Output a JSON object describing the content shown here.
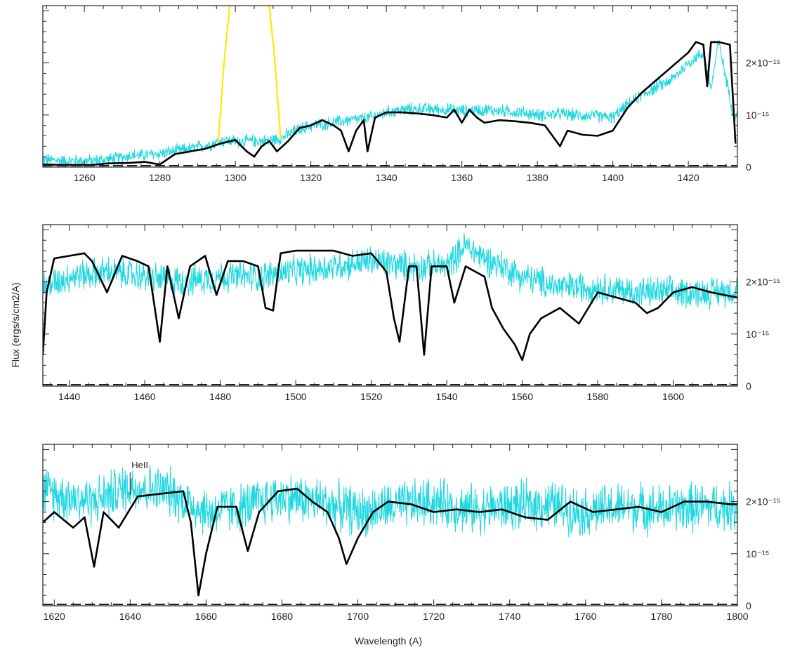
{
  "figure": {
    "ylabel": "Flux (ergs/s/cm2/A)",
    "xlabel": "Wavelength (A)"
  },
  "chart_data": [
    {
      "type": "line",
      "xlim": [
        1249,
        1433
      ],
      "ylim": [
        0,
        3.1e-15
      ],
      "xticks": [
        1260,
        1280,
        1300,
        1320,
        1340,
        1360,
        1380,
        1400,
        1420
      ],
      "yticks": [
        {
          "value": 0,
          "label": "0"
        },
        {
          "value": 1e-15,
          "label": "10⁻¹⁵"
        },
        {
          "value": 2e-15,
          "label": "2×10⁻¹⁵"
        }
      ],
      "series": [
        {
          "color": "#22d8e0",
          "role": "observed",
          "noise": 0.09,
          "x": [
            1249,
            1255,
            1262,
            1268,
            1272,
            1278,
            1282,
            1286,
            1290,
            1294,
            1296,
            1300,
            1304,
            1308,
            1312,
            1316,
            1320,
            1326,
            1330,
            1336,
            1340,
            1344,
            1350,
            1356,
            1360,
            1366,
            1370,
            1376,
            1380,
            1386,
            1390,
            1396,
            1400,
            1404,
            1408,
            1412,
            1416,
            1420,
            1424,
            1426,
            1428,
            1432
          ],
          "y": [
            0.14,
            0.12,
            0.12,
            0.16,
            0.22,
            0.24,
            0.28,
            0.33,
            0.38,
            0.45,
            0.5,
            0.5,
            0.5,
            0.5,
            0.55,
            0.7,
            0.8,
            0.85,
            0.9,
            0.95,
            1.05,
            1.1,
            1.12,
            1.1,
            1.08,
            1.1,
            1.08,
            1.05,
            1.0,
            1.02,
            1.0,
            0.98,
            0.95,
            1.2,
            1.4,
            1.55,
            1.7,
            2.0,
            2.2,
            1.5,
            2.4,
            1.0
          ]
        },
        {
          "color": "#ffea00",
          "role": "geocoronal",
          "noise": 0,
          "x": [
            1295.5,
            1297,
            1298.5,
            1300,
            1303,
            1306,
            1309,
            1310.5,
            1312
          ],
          "y": [
            0.48,
            2.0,
            3.1,
            3.2,
            3.2,
            3.2,
            3.1,
            2.0,
            0.55
          ]
        },
        {
          "color": "#000000",
          "role": "model",
          "noise": 0,
          "x": [
            1249,
            1255,
            1262,
            1266,
            1272,
            1276,
            1280,
            1284,
            1288,
            1292,
            1296,
            1300,
            1303,
            1305,
            1307,
            1309,
            1311,
            1314,
            1317,
            1320,
            1323,
            1326,
            1328,
            1330,
            1332,
            1334,
            1335,
            1337,
            1340,
            1344,
            1348,
            1352,
            1356,
            1358,
            1360,
            1362,
            1364,
            1366,
            1370,
            1374,
            1378,
            1382,
            1386,
            1388,
            1392,
            1396,
            1400,
            1404,
            1408,
            1412,
            1416,
            1420,
            1422,
            1424,
            1425,
            1426,
            1428,
            1431,
            1432.5
          ],
          "y": [
            0.05,
            0.04,
            0.04,
            0.07,
            0.08,
            0.1,
            0.05,
            0.25,
            0.3,
            0.35,
            0.45,
            0.52,
            0.3,
            0.2,
            0.4,
            0.5,
            0.3,
            0.5,
            0.75,
            0.8,
            0.9,
            0.8,
            0.7,
            0.3,
            0.7,
            0.9,
            0.3,
            0.95,
            1.05,
            1.05,
            1.03,
            1.0,
            0.95,
            1.1,
            0.85,
            1.1,
            0.95,
            0.85,
            0.9,
            0.88,
            0.85,
            0.8,
            0.4,
            0.7,
            0.62,
            0.6,
            0.7,
            1.15,
            1.45,
            1.7,
            1.95,
            2.2,
            2.4,
            2.35,
            1.55,
            2.4,
            2.4,
            2.35,
            0.45
          ]
        }
      ]
    },
    {
      "type": "line",
      "xlim": [
        1433,
        1617
      ],
      "ylim": [
        0,
        3.1e-15
      ],
      "xticks": [
        1440,
        1460,
        1480,
        1500,
        1520,
        1540,
        1560,
        1580,
        1600
      ],
      "yticks": [
        {
          "value": 0,
          "label": "0"
        },
        {
          "value": 1e-15,
          "label": "10⁻¹⁵"
        },
        {
          "value": 2e-15,
          "label": "2×10⁻¹⁵"
        }
      ],
      "series": [
        {
          "color": "#22d8e0",
          "role": "observed",
          "noise": 0.22,
          "x": [
            1433,
            1440,
            1450,
            1460,
            1470,
            1480,
            1490,
            1500,
            1510,
            1520,
            1530,
            1540,
            1545,
            1550,
            1555,
            1560,
            1570,
            1580,
            1590,
            1600,
            1610,
            1617
          ],
          "y": [
            1.9,
            2.1,
            2.2,
            2.1,
            2.0,
            2.1,
            2.1,
            2.2,
            2.3,
            2.4,
            2.3,
            2.3,
            2.7,
            2.45,
            2.3,
            2.1,
            1.9,
            1.9,
            1.8,
            1.8,
            1.8,
            1.85
          ]
        },
        {
          "color": "#000000",
          "role": "model",
          "noise": 0,
          "x": [
            1433,
            1434,
            1436,
            1440,
            1444,
            1446,
            1450,
            1454,
            1458,
            1461,
            1464,
            1466,
            1469,
            1472,
            1476,
            1479,
            1482,
            1486,
            1490,
            1492,
            1494,
            1496,
            1500,
            1505,
            1510,
            1515,
            1520,
            1524,
            1526,
            1527.5,
            1530,
            1532,
            1534,
            1536,
            1540,
            1542,
            1545,
            1550,
            1552,
            1555,
            1558,
            1560,
            1562,
            1565,
            1570,
            1575,
            1580,
            1585,
            1590,
            1593,
            1596,
            1600,
            1605,
            1610,
            1617
          ],
          "y": [
            0.6,
            1.8,
            2.45,
            2.5,
            2.55,
            2.4,
            1.8,
            2.5,
            2.4,
            2.3,
            0.85,
            2.3,
            1.3,
            2.3,
            2.5,
            1.75,
            2.4,
            2.4,
            2.3,
            1.5,
            1.45,
            2.55,
            2.6,
            2.6,
            2.6,
            2.5,
            2.55,
            2.2,
            1.3,
            0.85,
            2.3,
            2.3,
            0.6,
            2.3,
            2.3,
            1.6,
            2.3,
            2.1,
            1.5,
            1.1,
            0.8,
            0.5,
            1.0,
            1.3,
            1.5,
            1.2,
            1.8,
            1.7,
            1.6,
            1.4,
            1.5,
            1.8,
            1.9,
            1.8,
            1.7
          ]
        }
      ]
    },
    {
      "type": "line",
      "xlim": [
        1617,
        1800
      ],
      "ylim": [
        0,
        3.1e-15
      ],
      "xticks": [
        1620,
        1640,
        1660,
        1680,
        1700,
        1720,
        1740,
        1760,
        1780,
        1800
      ],
      "yticks": [
        {
          "value": 0,
          "label": "0"
        },
        {
          "value": 1e-15,
          "label": "10⁻¹⁵"
        },
        {
          "value": 2e-15,
          "label": "2×10⁻¹⁵"
        }
      ],
      "annotation": {
        "text": "HeII",
        "x": 1640
      },
      "series": [
        {
          "color": "#22d8e0",
          "role": "observed",
          "noise": 0.35,
          "x": [
            1617,
            1630,
            1640,
            1650,
            1660,
            1670,
            1680,
            1690,
            1700,
            1710,
            1720,
            1730,
            1740,
            1750,
            1760,
            1770,
            1780,
            1790,
            1800
          ],
          "y": [
            2.2,
            2.0,
            2.3,
            2.2,
            1.8,
            1.9,
            2.1,
            2.0,
            1.8,
            1.9,
            2.0,
            1.85,
            1.9,
            1.95,
            1.8,
            1.9,
            1.85,
            1.9,
            1.9
          ]
        },
        {
          "color": "#000000",
          "role": "model",
          "noise": 0,
          "x": [
            1617,
            1620,
            1625,
            1628,
            1630.5,
            1633,
            1637,
            1642,
            1648,
            1654,
            1656,
            1658,
            1660,
            1663,
            1668,
            1671,
            1674,
            1679,
            1684,
            1688,
            1692,
            1695,
            1697,
            1700,
            1704,
            1708,
            1714,
            1720,
            1726,
            1732,
            1738,
            1744,
            1750,
            1756,
            1762,
            1768,
            1774,
            1780,
            1786,
            1792,
            1798,
            1800
          ],
          "y": [
            1.6,
            1.8,
            1.5,
            1.7,
            0.75,
            1.8,
            1.5,
            2.1,
            2.15,
            2.2,
            1.6,
            0.2,
            1.0,
            1.9,
            1.9,
            1.05,
            1.8,
            2.2,
            2.25,
            2.0,
            1.8,
            1.3,
            0.8,
            1.3,
            1.8,
            2.0,
            1.95,
            1.8,
            1.85,
            1.8,
            1.85,
            1.7,
            1.65,
            2.0,
            1.8,
            1.85,
            1.9,
            1.8,
            2.0,
            2.0,
            1.95,
            1.95
          ]
        }
      ]
    }
  ]
}
